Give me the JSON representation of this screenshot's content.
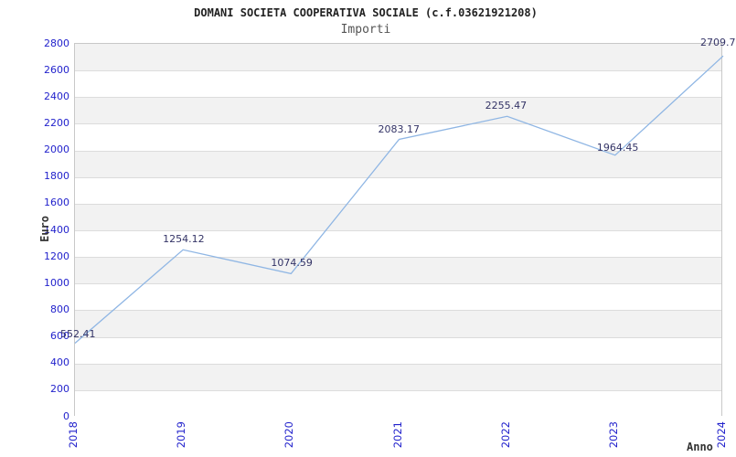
{
  "chart_data": {
    "type": "line",
    "title": "DOMANI SOCIETA COOPERATIVA SOCIALE (c.f.03621921208)",
    "subtitle": "Importi",
    "xlabel": "Anno",
    "ylabel": "Euro",
    "x_categories": [
      "2018",
      "2019",
      "2020",
      "2021",
      "2022",
      "2023",
      "2024"
    ],
    "series": [
      {
        "name": "Importi",
        "values": [
          552.41,
          1254.12,
          1074.59,
          2083.17,
          2255.47,
          1964.45,
          2709.7
        ],
        "point_labels": [
          "552.41",
          "1254.12",
          "1074.59",
          "2083.17",
          "2255.47",
          "1964.45",
          "2709.7"
        ]
      }
    ],
    "ylim": [
      0,
      2800
    ],
    "ytick_step": 200,
    "ytick_labels": [
      "0",
      "200",
      "400",
      "600",
      "800",
      "1000",
      "1200",
      "1400",
      "1600",
      "1800",
      "2000",
      "2200",
      "2400",
      "2600",
      "2800"
    ],
    "grid": "alternating-horizontal-bands",
    "legend_position": "none",
    "colors": {
      "line": "#8fb6e4",
      "axis_tick_label": "#2222cc",
      "point_label": "#333366",
      "band_fill": "#f2f2f2",
      "grid_line": "#dcdcdc",
      "plot_border": "#c8c8c8",
      "title": "#222222",
      "subtitle": "#555555",
      "axis_title": "#333333"
    }
  }
}
